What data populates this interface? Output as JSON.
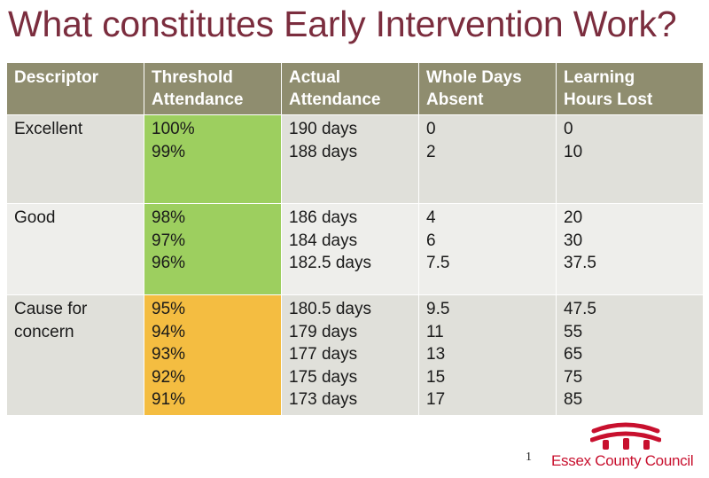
{
  "title": "What constitutes Early Intervention Work?",
  "table": {
    "headers": [
      [
        "Descriptor"
      ],
      [
        "Threshold",
        "Attendance"
      ],
      [
        "Actual",
        "Attendance"
      ],
      [
        "Whole Days",
        "Absent"
      ],
      [
        "Learning",
        "Hours Lost"
      ]
    ],
    "rows": [
      {
        "descriptor": [
          "Excellent"
        ],
        "threshold": [
          "100%",
          "99%"
        ],
        "actual": [
          "190 days",
          "188 days"
        ],
        "days_absent": [
          "0",
          "2"
        ],
        "hours_lost": [
          "0",
          "10"
        ]
      },
      {
        "descriptor": [
          "Good"
        ],
        "threshold": [
          "98%",
          "97%",
          "96%"
        ],
        "actual": [
          "186 days",
          "184 days",
          "182.5 days"
        ],
        "days_absent": [
          "4",
          "6",
          "7.5"
        ],
        "hours_lost": [
          "20",
          "30",
          "37.5"
        ]
      },
      {
        "descriptor": [
          "Cause for",
          "concern"
        ],
        "threshold": [
          "95%",
          "94%",
          "93%",
          "92%",
          "91%"
        ],
        "actual": [
          "180.5 days",
          "179 days",
          "177 days",
          "175 days",
          "173 days"
        ],
        "days_absent": [
          "9.5",
          "11",
          "13",
          "15",
          "17"
        ],
        "hours_lost": [
          "47.5",
          "55",
          "65",
          "75",
          "85"
        ]
      }
    ]
  },
  "page_number": "1",
  "logo": {
    "text": "Essex County Council"
  },
  "colors": {
    "title": "#7b2d3e",
    "header_bg": "#8f8d6f",
    "band_excellent_good": "#9dcf5f",
    "band_concern": "#f4bd41",
    "brand_red": "#c8102e"
  }
}
